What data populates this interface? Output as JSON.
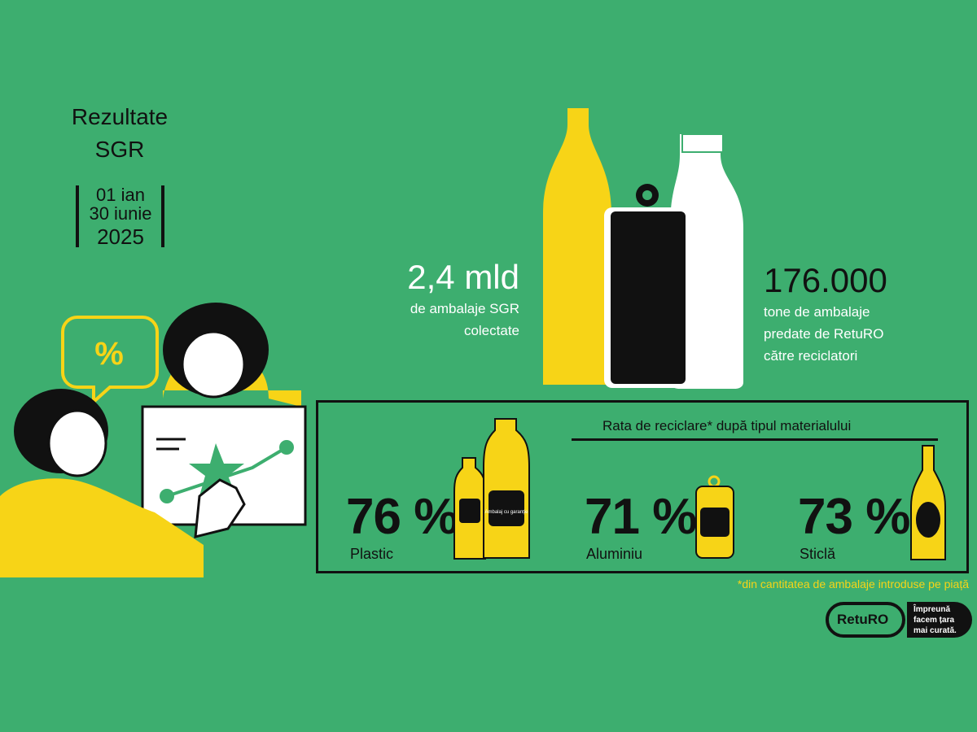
{
  "title": {
    "line1": "Rezultate",
    "line2": "SGR"
  },
  "period": {
    "start": "01 ian",
    "end": "30 iunie",
    "year": "2025"
  },
  "stats": {
    "collected": {
      "value": "2,4 mld",
      "line1": "de ambalaje SGR",
      "line2": "colectate"
    },
    "tonnes": {
      "value": "176.000",
      "line1": "tone de ambalaje",
      "line2": "predate de RetuRO",
      "line3": "către reciclatori"
    }
  },
  "recycling": {
    "heading": "Rata de reciclare* după tipul materialului",
    "items": [
      {
        "percent": "76",
        "unit": "%",
        "material": "Plastic"
      },
      {
        "percent": "71",
        "unit": "%",
        "material": "Aluminiu"
      },
      {
        "percent": "73",
        "unit": "%",
        "material": "Sticlă"
      }
    ],
    "footnote": "*din cantitatea de ambalaje introduse pe piață",
    "label_text": "Ambalaj cu garanție"
  },
  "illustration": {
    "bubble_symbol": "%"
  },
  "logo": {
    "brand": "RetuRO",
    "tagline": "Împreună facem țara mai curată."
  },
  "colors": {
    "background": "#3dae6f",
    "yellow": "#f7d417",
    "black": "#111111",
    "white": "#ffffff"
  }
}
